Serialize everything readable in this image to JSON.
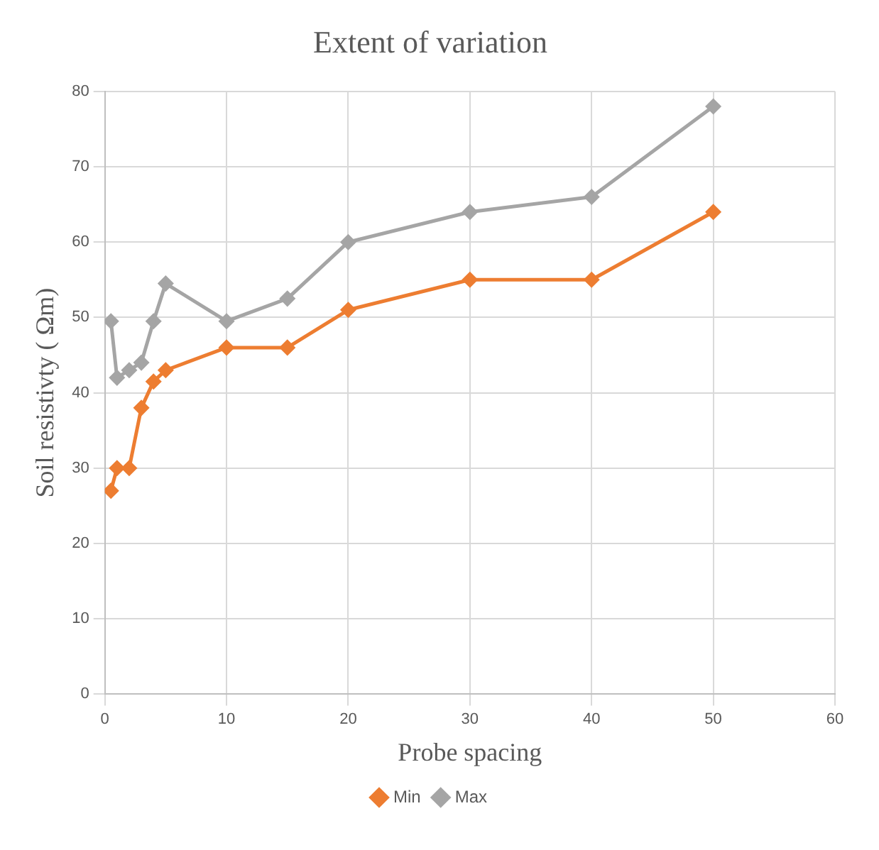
{
  "chart_data": {
    "type": "line",
    "title": "Extent of variation",
    "xlabel": "Probe spacing",
    "ylabel": "Soil resistivty ( Ωm)",
    "x": [
      0.5,
      1,
      2,
      3,
      4,
      5,
      10,
      15,
      20,
      30,
      40,
      50
    ],
    "series": [
      {
        "name": "Min",
        "color": "#ed7d31",
        "values": [
          27,
          30,
          30,
          38,
          41.5,
          43,
          46,
          46,
          51,
          55,
          55,
          64
        ]
      },
      {
        "name": "Max",
        "color": "#a5a5a5",
        "values": [
          49.5,
          42,
          43,
          44,
          49.5,
          54.5,
          49.5,
          52.5,
          60,
          64,
          66,
          78
        ]
      }
    ],
    "xlim": [
      0,
      60
    ],
    "xticks": [
      0,
      10,
      20,
      30,
      40,
      50,
      60
    ],
    "ylim": [
      0,
      80
    ],
    "yticks": [
      0,
      10,
      20,
      30,
      40,
      50,
      60,
      70,
      80
    ],
    "grid": true,
    "legend": "bottom",
    "marker": "diamond",
    "line_style": "solid"
  }
}
